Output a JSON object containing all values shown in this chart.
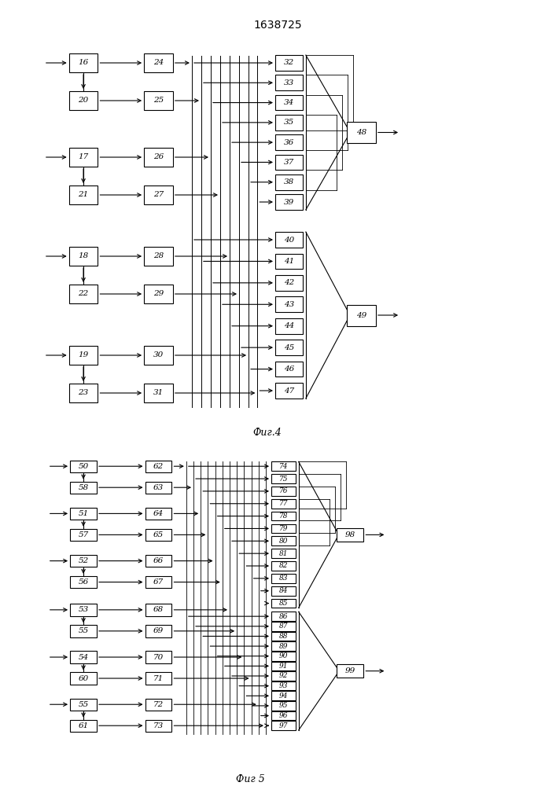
{
  "title": "1638725",
  "fig4_label": "Фиг.4",
  "fig5_label": "Фиг 5",
  "background": "#ffffff",
  "fig4": {
    "left_pairs": [
      {
        "input": "16",
        "proc": "24",
        "row": 9.5,
        "has_arrow_in": true
      },
      {
        "input": "20",
        "proc": "25",
        "row": 8.7,
        "has_arrow_in": false
      },
      {
        "input": "17",
        "proc": "26",
        "row": 7.5,
        "has_arrow_in": true
      },
      {
        "input": "21",
        "proc": "27",
        "row": 6.7,
        "has_arrow_in": false
      },
      {
        "input": "18",
        "proc": "28",
        "row": 5.4,
        "has_arrow_in": true
      },
      {
        "input": "22",
        "proc": "29",
        "row": 4.6,
        "has_arrow_in": false
      },
      {
        "input": "19",
        "proc": "30",
        "row": 3.3,
        "has_arrow_in": true
      },
      {
        "input": "23",
        "proc": "31",
        "row": 2.5,
        "has_arrow_in": false
      }
    ],
    "right_col1": [
      "32",
      "33",
      "34",
      "35",
      "36",
      "37",
      "38",
      "39"
    ],
    "right_col2": [
      "40",
      "41",
      "42",
      "43",
      "44",
      "45",
      "46",
      "47"
    ],
    "output1": "48",
    "output2": "49"
  },
  "fig5": {
    "left_pairs": [
      {
        "input": "50",
        "proc": "62",
        "row": 9.5,
        "has_arrow_in": true
      },
      {
        "input": "58",
        "proc": "63",
        "row": 8.85,
        "has_arrow_in": false
      },
      {
        "input": "51",
        "proc": "64",
        "row": 8.05,
        "has_arrow_in": true
      },
      {
        "input": "57",
        "proc": "65",
        "row": 7.4,
        "has_arrow_in": false
      },
      {
        "input": "52",
        "proc": "66",
        "row": 6.6,
        "has_arrow_in": true
      },
      {
        "input": "56",
        "proc": "67",
        "row": 5.95,
        "has_arrow_in": false
      },
      {
        "input": "53",
        "proc": "68",
        "row": 5.1,
        "has_arrow_in": true
      },
      {
        "input": "55",
        "proc": "69",
        "row": 4.45,
        "has_arrow_in": false
      },
      {
        "input": "54",
        "proc": "70",
        "row": 3.65,
        "has_arrow_in": true
      },
      {
        "input": "60",
        "proc": "71",
        "row": 3.0,
        "has_arrow_in": false
      },
      {
        "input": "55",
        "proc": "72",
        "row": 2.2,
        "has_arrow_in": true
      },
      {
        "input": "61",
        "proc": "73",
        "row": 1.55,
        "has_arrow_in": false
      }
    ],
    "right_col1": [
      "74",
      "75",
      "76",
      "77",
      "78",
      "79",
      "80",
      "81",
      "82",
      "83",
      "84",
      "85"
    ],
    "right_col2": [
      "86",
      "87",
      "88",
      "89",
      "90",
      "91",
      "92",
      "93",
      "94",
      "95",
      "96",
      "97"
    ],
    "output1": "98",
    "output2": "99"
  }
}
